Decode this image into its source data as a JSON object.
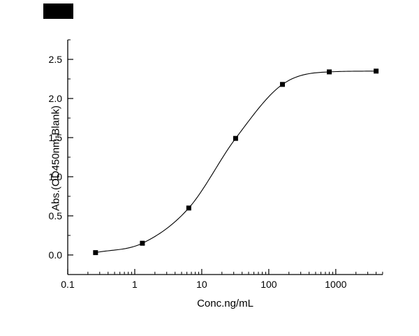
{
  "page": {
    "background": "#ffffff"
  },
  "decor": {
    "redaction_box_color": "#000000"
  },
  "chart_data": {
    "type": "scatter",
    "subtype": "sigmoidal-standard-curve",
    "title": "",
    "xlabel": "Conc.ng/mL",
    "ylabel": "Abs.(OD450nm-Blank)",
    "x_scale": "log",
    "x": [
      0.26,
      1.3,
      6.4,
      32,
      160,
      800,
      4000
    ],
    "y": [
      0.03,
      0.15,
      0.6,
      1.49,
      2.18,
      2.34,
      2.35
    ],
    "x_ticks": [
      0.1,
      1,
      10,
      100,
      1000
    ],
    "x_tick_labels": [
      "0.1",
      "1",
      "10",
      "100",
      "1000"
    ],
    "y_ticks": [
      0.0,
      0.5,
      1.0,
      1.5,
      2.0,
      2.5
    ],
    "y_tick_labels": [
      "0.0",
      "0.5",
      "1.0",
      "1.5",
      "2.0",
      "2.5"
    ],
    "xlim_log": [
      -1,
      3.7
    ],
    "ylim": [
      -0.25,
      2.75
    ],
    "y_minor_step": 0.25,
    "grid": false,
    "legend": "none",
    "marker": "filled-square",
    "curve": "smooth-fit-line",
    "colors": {
      "line": "#000000",
      "marker": "#000000",
      "axis": "#000000",
      "text": "#000000"
    }
  }
}
